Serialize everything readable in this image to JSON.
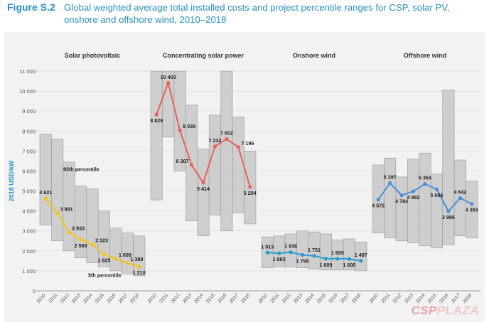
{
  "figure": {
    "label": "Figure S.2",
    "title": "Global weighted average total installed costs and project percentile ranges for CSP, solar PV, onshore and offshore wind, 2010–2018"
  },
  "watermark": {
    "part1": "CSP",
    "part2": "PLAZA"
  },
  "colors": {
    "title": "#2a8fc4",
    "band": "#c8c8c8",
    "solar_pv": "#f2c318",
    "csp": "#e8605a",
    "onshore": "#2b9bd1",
    "offshore": "#4a90d9"
  },
  "chart_data": {
    "type": "line",
    "ylabel": "2018 USD/kW",
    "ylim": [
      0,
      11000
    ],
    "yticks": [
      0,
      1000,
      2000,
      3000,
      4000,
      5000,
      6000,
      7000,
      8000,
      9000,
      10000,
      11000
    ],
    "ytick_labels": [
      "0",
      "1 000",
      "2 000",
      "3 000",
      "4 000",
      "5 000",
      "6 000",
      "7 000",
      "8 000",
      "9 000",
      "10 000",
      "11 000"
    ],
    "x": [
      "2010",
      "2011",
      "2012",
      "2013",
      "2014",
      "2015",
      "2016",
      "2017",
      "2018"
    ],
    "grid": true,
    "panels": [
      {
        "title": "Solar photovoltaic",
        "color_key": "solar_pv",
        "values": [
          4621,
          3891,
          2933,
          2569,
          2323,
          1825,
          1609,
          1389,
          1210
        ],
        "value_labels": [
          "4 621",
          "3 891",
          "2 933",
          "2 569",
          "2 323",
          "1 825",
          "1 609",
          "1 389",
          "1 210"
        ],
        "label_pos": [
          "above",
          "right",
          "right",
          "below",
          "right",
          "below",
          "right",
          "right",
          "below"
        ],
        "p95": [
          7850,
          7600,
          6450,
          5250,
          5100,
          4000,
          3150,
          2900,
          2750
        ],
        "p05": [
          3300,
          2500,
          2000,
          1650,
          1400,
          1200,
          1000,
          850,
          750
        ],
        "annotations": [
          "95th percentile",
          "5th percentile"
        ]
      },
      {
        "title": "Concentrating solar power",
        "color_key": "csp",
        "values": [
          8829,
          10403,
          8039,
          6307,
          5414,
          7232,
          7602,
          7196,
          5204
        ],
        "value_labels": [
          "8 829",
          "10 403",
          "8 039",
          "6 307",
          "5 414",
          "7 232",
          "7 602",
          "7 196",
          "5 204"
        ],
        "label_pos": [
          "below",
          "above",
          "right",
          "left",
          "below",
          "above",
          "above",
          "right",
          "below"
        ],
        "p95": [
          11000,
          11000,
          11000,
          9300,
          7100,
          8800,
          11000,
          8700,
          7000
        ],
        "p05": [
          4550,
          7700,
          6000,
          3500,
          2750,
          3800,
          3000,
          3900,
          3350
        ]
      },
      {
        "title": "Onshore wind",
        "color_key": "onshore",
        "values": [
          1913,
          1883,
          1936,
          1798,
          1751,
          1609,
          1609,
          1600,
          1497
        ],
        "value_labels": [
          "1 913",
          "1 883",
          "1 936",
          "1 798",
          "1 751",
          "1 609",
          "1 609",
          "1 600",
          "1 497"
        ],
        "label_pos": [
          "above",
          "below",
          "above",
          "below",
          "above",
          "below",
          "above",
          "below",
          "above"
        ],
        "p95": [
          2700,
          2750,
          2850,
          3000,
          2950,
          2850,
          2550,
          2600,
          2450
        ],
        "p05": [
          1150,
          1200,
          1200,
          1150,
          1100,
          1050,
          1050,
          1050,
          1000
        ]
      },
      {
        "title": "Offshore wind",
        "color_key": "offshore",
        "values": [
          4572,
          5397,
          4784,
          4982,
          5354,
          5086,
          3986,
          4642,
          4353
        ],
        "value_labels": [
          "4 572",
          "5 397",
          "4 784",
          "4 982",
          "5 354",
          "5 086",
          "3 986",
          "4 642",
          "4 353"
        ],
        "label_pos": [
          "below",
          "above",
          "below",
          "below",
          "above",
          "below",
          "below",
          "above",
          "below"
        ],
        "p95": [
          6300,
          6650,
          5700,
          6600,
          6900,
          5850,
          10050,
          6550,
          5500
        ],
        "p05": [
          2900,
          2650,
          2500,
          2400,
          2250,
          2150,
          2300,
          2750,
          2650
        ]
      }
    ]
  }
}
